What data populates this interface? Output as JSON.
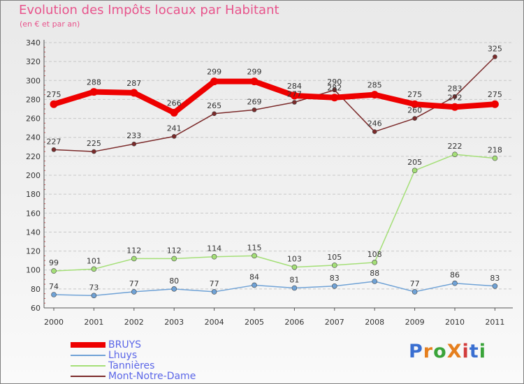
{
  "title": "Evolution des Impôts locaux par Habitant",
  "subtitle": "(en € et par an)",
  "logo": {
    "text": "ProXiti",
    "colors": [
      "#3a6fd1",
      "#e57f1e",
      "#3aa43a",
      "#e57f1e",
      "#d23c3c",
      "#3a6fd1",
      "#3aa43a"
    ]
  },
  "chart_data": {
    "type": "line",
    "x": [
      "2000",
      "2001",
      "2002",
      "2003",
      "2004",
      "2005",
      "2006",
      "2007",
      "2008",
      "2009",
      "2010",
      "2011"
    ],
    "ylim": [
      60,
      340
    ],
    "yticks": [
      60,
      80,
      100,
      120,
      140,
      160,
      180,
      200,
      220,
      240,
      260,
      280,
      300,
      320,
      340
    ],
    "grid": "horizontal",
    "legend_position": "bottom-left",
    "series": [
      {
        "name": "BRUYS",
        "color": "#ee0000",
        "values": [
          275,
          288,
          287,
          266,
          299,
          299,
          284,
          282,
          285,
          275,
          272,
          275
        ],
        "labels": [
          "275",
          "288",
          "287",
          "266",
          "299",
          "299",
          "284",
          "282",
          "285",
          "275",
          "272",
          "275"
        ]
      },
      {
        "name": "Lhuys",
        "color": "#6fa2d6",
        "values": [
          74,
          73,
          77,
          80,
          77,
          84,
          81,
          83,
          88,
          77,
          86,
          83
        ],
        "labels": [
          "74",
          "73",
          "77",
          "80",
          "77",
          "84",
          "81",
          "83",
          "88",
          "77",
          "86",
          "83"
        ]
      },
      {
        "name": "Tannières",
        "color": "#a4df77",
        "values": [
          99,
          101,
          112,
          112,
          114,
          115,
          103,
          105,
          108,
          205,
          222,
          218
        ],
        "labels": [
          "99",
          "101",
          "112",
          "112",
          "114",
          "115",
          "103",
          "105",
          "108",
          "205",
          "222",
          "218"
        ]
      },
      {
        "name": "Mont-Notre-Dame",
        "color": "#7b2a2a",
        "values": [
          227,
          225,
          233,
          241,
          265,
          269,
          277,
          290,
          246,
          260,
          283,
          325
        ],
        "labels": [
          "227",
          "225",
          "233",
          "241",
          "265",
          "269",
          "277",
          "290",
          "246",
          "260",
          "283",
          "325"
        ]
      }
    ]
  }
}
